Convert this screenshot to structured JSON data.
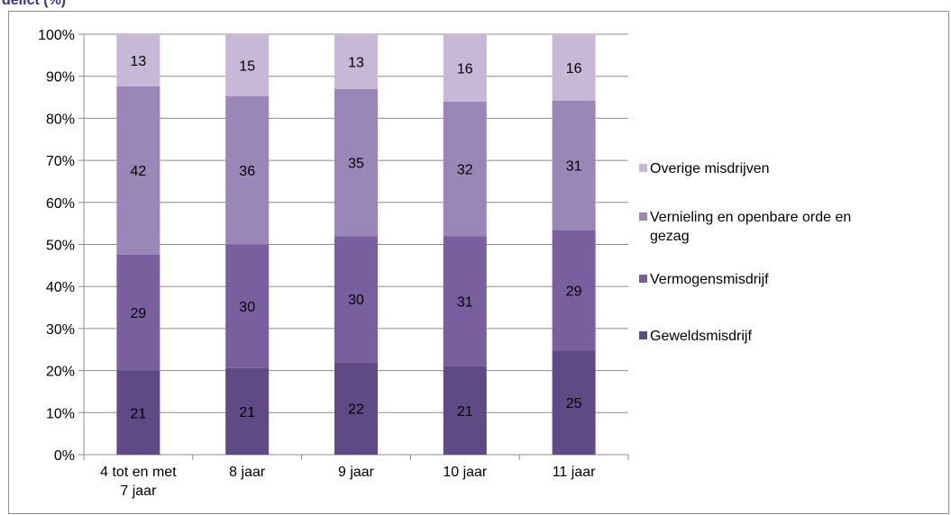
{
  "chart_data": {
    "type": "bar",
    "stacked": true,
    "percent": true,
    "title": "delict (%)",
    "categories": [
      [
        "4 tot en met",
        "7 jaar"
      ],
      [
        "8 jaar"
      ],
      [
        "9 jaar"
      ],
      [
        "10 jaar"
      ],
      [
        "11 jaar"
      ]
    ],
    "series": [
      {
        "name": "Geweldsmisdrijf",
        "color": "#5f4a86",
        "values": [
          21,
          21,
          22,
          21,
          25
        ]
      },
      {
        "name": "Vermogensmisdrijf",
        "color": "#7a5f9e",
        "values": [
          29,
          30,
          30,
          31,
          29
        ]
      },
      {
        "name": "Vernieling en openbare orde en gezag",
        "color": "#9a87b8",
        "values": [
          42,
          36,
          35,
          32,
          31
        ]
      },
      {
        "name": "Overige misdrijven",
        "color": "#c6b8d6",
        "values": [
          13,
          15,
          13,
          16,
          16
        ]
      }
    ],
    "ylim": [
      0,
      100
    ],
    "yticks": [
      "0%",
      "10%",
      "20%",
      "30%",
      "40%",
      "50%",
      "60%",
      "70%",
      "80%",
      "90%",
      "100%"
    ],
    "grid": true,
    "legend_position": "right",
    "legend_order": [
      "Overige misdrijven",
      "Vernieling en openbare orde en gezag",
      "Vermogensmisdrijf",
      "Geweldsmisdrijf"
    ],
    "legend_lines": {
      "Vernieling en openbare orde en gezag": [
        "Vernieling en openbare orde en",
        "gezag"
      ]
    }
  }
}
